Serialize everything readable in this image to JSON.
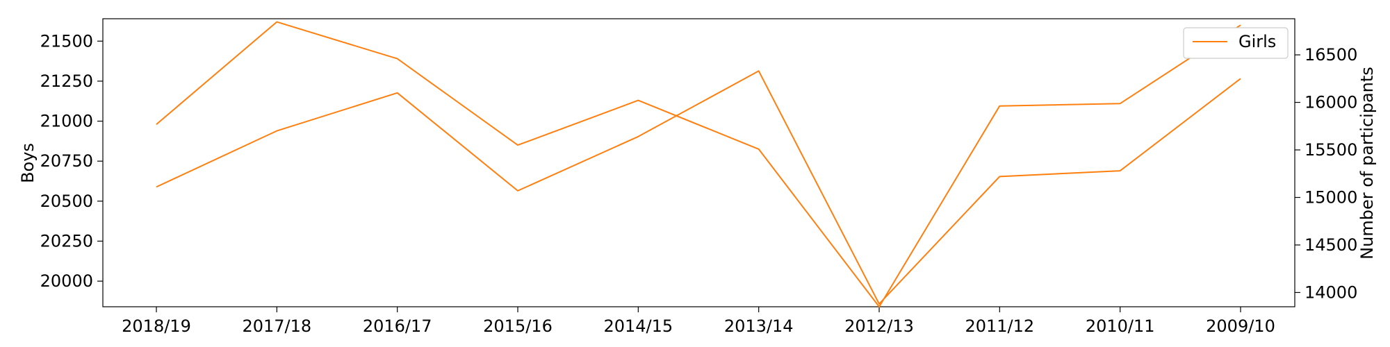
{
  "chart_data": {
    "type": "line",
    "categories": [
      "2018/19",
      "2017/18",
      "2016/17",
      "2015/16",
      "2014/15",
      "2013/14",
      "2012/13",
      "2011/12",
      "2010/11",
      "2009/10"
    ],
    "series": [
      {
        "name": "",
        "axis": "left",
        "color": "#ff7f0e",
        "values": [
          20980,
          21620,
          21390,
          20850,
          21130,
          20825,
          19840,
          21095,
          21110,
          21600
        ]
      },
      {
        "name": "Girls",
        "axis": "right",
        "color": "#ff7f0e",
        "values": [
          15110,
          15700,
          16100,
          15070,
          15640,
          16330,
          13880,
          15220,
          15280,
          16250
        ]
      }
    ],
    "ylabel_left": "Boys",
    "ylabel_right": "Number of participants",
    "ylim_left": [
      19840,
      21640
    ],
    "ylim_right": [
      13850,
      16880
    ],
    "yticks_left": [
      "20000",
      "20250",
      "20500",
      "20750",
      "21000",
      "21250",
      "21500"
    ],
    "yticks_right": [
      "14000",
      "14500",
      "15000",
      "15500",
      "16000",
      "16500"
    ],
    "legend": {
      "position": "top-right",
      "entries": [
        "Girls"
      ]
    },
    "grid": false
  }
}
